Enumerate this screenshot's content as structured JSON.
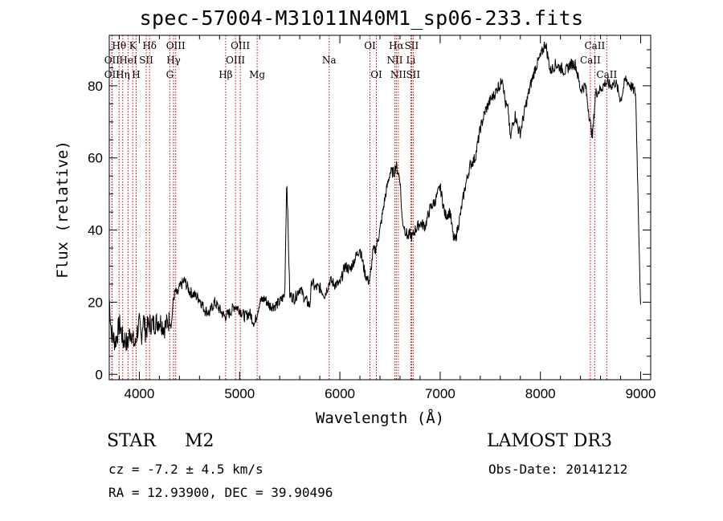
{
  "chart_data": {
    "type": "line",
    "title": "spec-57004-M31011N40M1_sp06-233.fits",
    "xlabel": "Wavelength (Å)",
    "ylabel": "Flux (relative)",
    "xlim": [
      3700,
      9100
    ],
    "ylim": [
      -1.5,
      94
    ],
    "xticks": [
      4000,
      5000,
      6000,
      7000,
      8000,
      9000
    ],
    "xtick_labels": [
      "4000",
      "5000",
      "6000",
      "7000",
      "8000",
      "9000"
    ],
    "yticks": [
      0,
      20,
      40,
      60,
      80
    ],
    "ytick_labels": [
      "0",
      "20",
      "40",
      "60",
      "80"
    ],
    "series": [
      {
        "name": "spectrum",
        "x": [
          3700,
          3720,
          3740,
          3760,
          3780,
          3800,
          3820,
          3840,
          3860,
          3880,
          3900,
          3920,
          3940,
          3960,
          3980,
          4000,
          4020,
          4040,
          4060,
          4080,
          4100,
          4150,
          4200,
          4250,
          4300,
          4320,
          4340,
          4360,
          4380,
          4400,
          4450,
          4500,
          4550,
          4600,
          4650,
          4700,
          4750,
          4800,
          4850,
          4900,
          4950,
          5000,
          5050,
          5100,
          5150,
          5200,
          5250,
          5300,
          5350,
          5400,
          5450,
          5470,
          5500,
          5550,
          5600,
          5650,
          5700,
          5720,
          5750,
          5800,
          5850,
          5900,
          5950,
          6000,
          6050,
          6100,
          6150,
          6200,
          6250,
          6280,
          6300,
          6330,
          6360,
          6400,
          6450,
          6500,
          6540,
          6560,
          6580,
          6600,
          6620,
          6650,
          6680,
          6700,
          6720,
          6750,
          6800,
          6850,
          6900,
          6950,
          7000,
          7050,
          7100,
          7130,
          7150,
          7200,
          7250,
          7300,
          7350,
          7400,
          7450,
          7500,
          7550,
          7580,
          7600,
          7620,
          7650,
          7680,
          7700,
          7720,
          7750,
          7780,
          7800,
          7850,
          7900,
          7950,
          8000,
          8050,
          8100,
          8150,
          8200,
          8250,
          8300,
          8350,
          8400,
          8450,
          8500,
          8520,
          8550,
          8600,
          8650,
          8700,
          8750,
          8800,
          8850,
          8900,
          8950,
          9000
        ],
        "y": [
          21,
          12,
          10,
          9,
          11,
          14,
          12,
          9,
          10,
          8,
          11,
          12,
          9,
          8,
          12,
          14,
          10,
          16,
          12,
          13,
          14,
          14,
          15,
          13,
          15,
          14,
          21,
          23,
          22,
          24,
          26,
          23,
          22,
          21,
          18,
          17,
          20,
          18,
          16,
          17,
          19,
          18,
          16,
          17,
          14,
          20,
          21,
          19,
          19,
          20,
          22,
          55,
          22,
          21,
          24,
          21,
          19,
          26,
          24,
          24,
          22,
          26,
          25,
          25,
          30,
          29,
          32,
          35,
          28,
          26,
          26,
          34,
          35,
          40,
          49,
          56,
          56,
          58,
          56,
          54,
          43,
          40,
          38,
          39,
          38,
          40,
          42,
          41,
          46,
          48,
          52,
          44,
          45,
          38,
          37,
          44,
          52,
          58,
          60,
          68,
          73,
          76,
          78,
          80,
          80,
          83,
          75,
          73,
          65,
          69,
          72,
          68,
          67,
          74,
          80,
          85,
          88,
          92,
          84,
          86,
          85,
          84,
          86,
          86,
          79,
          80,
          69,
          66,
          78,
          79,
          81,
          80,
          81,
          76,
          82,
          80,
          78,
          18
        ]
      }
    ],
    "line_labels": [
      {
        "label": "Hθ",
        "x": 3798,
        "row": 0
      },
      {
        "label": "OII",
        "x": 3727,
        "row": 1
      },
      {
        "label": "OII",
        "x": 3727,
        "row": 2
      },
      {
        "label": "HeI",
        "x": 3889,
        "row": 1
      },
      {
        "label": "Hη",
        "x": 3835,
        "row": 2
      },
      {
        "label": "K",
        "x": 3934,
        "row": 0
      },
      {
        "label": "SII",
        "x": 4069,
        "row": 1
      },
      {
        "label": "H",
        "x": 3968,
        "row": 2
      },
      {
        "label": "Hδ",
        "x": 4102,
        "row": 0
      },
      {
        "label": "OIII",
        "x": 4363,
        "row": 0
      },
      {
        "label": "Hγ",
        "x": 4341,
        "row": 1
      },
      {
        "label": "G",
        "x": 4304,
        "row": 2
      },
      {
        "label": "Hβ",
        "x": 4861,
        "row": 2
      },
      {
        "label": "OIII",
        "x": 5007,
        "row": 0
      },
      {
        "label": "OIII",
        "x": 4959,
        "row": 1
      },
      {
        "label": "Mg",
        "x": 5175,
        "row": 2
      },
      {
        "label": "Na",
        "x": 5893,
        "row": 1
      },
      {
        "label": "OI",
        "x": 6300,
        "row": 0
      },
      {
        "label": "OI",
        "x": 6364,
        "row": 2
      },
      {
        "label": "Hα",
        "x": 6563,
        "row": 0
      },
      {
        "label": "SII",
        "x": 6716,
        "row": 0
      },
      {
        "label": "NII",
        "x": 6548,
        "row": 1
      },
      {
        "label": "Li",
        "x": 6708,
        "row": 1
      },
      {
        "label": "NII",
        "x": 6583,
        "row": 2
      },
      {
        "label": "SII",
        "x": 6731,
        "row": 2
      },
      {
        "label": "CaII",
        "x": 8542,
        "row": 0
      },
      {
        "label": "CaII",
        "x": 8498,
        "row": 1
      },
      {
        "label": "CaII",
        "x": 8662,
        "row": 2
      }
    ],
    "line_marker_color": "#cc0000",
    "spectrum_color": "#000000"
  },
  "info": {
    "object_class": "STAR",
    "subclass": "M2",
    "survey": "LAMOST DR3",
    "cz": "cz = -7.2 ± 4.5 km/s",
    "radec": "RA =  12.93900, DEC =  39.90496",
    "obs_date": "Obs-Date: 20141212"
  }
}
